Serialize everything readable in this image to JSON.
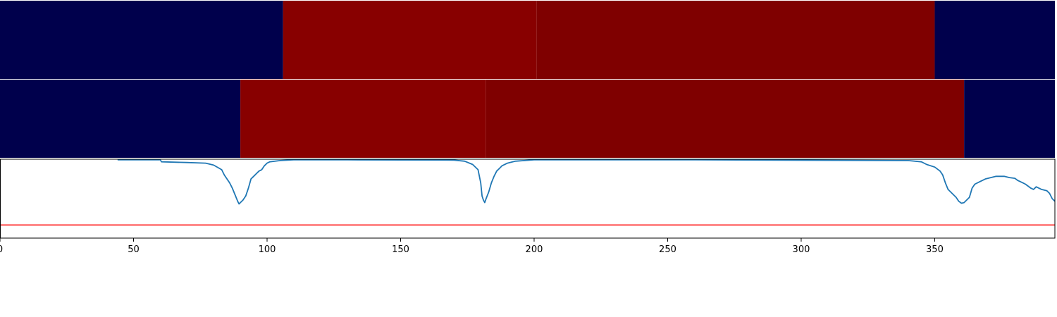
{
  "chart_data": {
    "type": "heatmap",
    "x_range": [
      0,
      395
    ],
    "x_ticks": [
      0,
      50,
      100,
      150,
      200,
      250,
      300,
      350
    ],
    "x_tick_labels": [
      "0",
      "50",
      "100",
      "150",
      "200",
      "250",
      "300",
      "350"
    ],
    "segment_rows": [
      {
        "segments": [
          {
            "start": 0,
            "end": 106,
            "color": "#00004c"
          },
          {
            "start": 106,
            "end": 201,
            "color": "#880000"
          },
          {
            "start": 201,
            "end": 350,
            "color": "#7f0000"
          },
          {
            "start": 350,
            "end": 395,
            "color": "#00004c"
          }
        ]
      },
      {
        "segments": [
          {
            "start": 0,
            "end": 90,
            "color": "#00004c"
          },
          {
            "start": 90,
            "end": 182,
            "color": "#880000"
          },
          {
            "start": 182,
            "end": 361,
            "color": "#7f0000"
          },
          {
            "start": 361,
            "end": 395,
            "color": "#00004c"
          }
        ]
      }
    ],
    "line_series": {
      "color": "#1f77b4",
      "points": [
        [
          44,
          0.995
        ],
        [
          60,
          0.995
        ],
        [
          60.5,
          0.98
        ],
        [
          70,
          0.975
        ],
        [
          77,
          0.97
        ],
        [
          78,
          0.965
        ],
        [
          80,
          0.955
        ],
        [
          83,
          0.92
        ],
        [
          84,
          0.88
        ],
        [
          86,
          0.82
        ],
        [
          87,
          0.78
        ],
        [
          88,
          0.73
        ],
        [
          89,
          0.68
        ],
        [
          89.5,
          0.66
        ],
        [
          90,
          0.67
        ],
        [
          91,
          0.69
        ],
        [
          92,
          0.72
        ],
        [
          93,
          0.78
        ],
        [
          94,
          0.85
        ],
        [
          95,
          0.87
        ],
        [
          96,
          0.89
        ],
        [
          97,
          0.91
        ],
        [
          98,
          0.92
        ],
        [
          99,
          0.95
        ],
        [
          100,
          0.97
        ],
        [
          101,
          0.98
        ],
        [
          105,
          0.99
        ],
        [
          110,
          0.995
        ],
        [
          130,
          0.995
        ],
        [
          170,
          0.993
        ],
        [
          174,
          0.985
        ],
        [
          177,
          0.96
        ],
        [
          179,
          0.92
        ],
        [
          180,
          0.82
        ],
        [
          180.5,
          0.72
        ],
        [
          181,
          0.69
        ],
        [
          181.5,
          0.67
        ],
        [
          182,
          0.7
        ],
        [
          183,
          0.75
        ],
        [
          184,
          0.82
        ],
        [
          185,
          0.87
        ],
        [
          186,
          0.91
        ],
        [
          187,
          0.93
        ],
        [
          188,
          0.95
        ],
        [
          190,
          0.97
        ],
        [
          193,
          0.985
        ],
        [
          200,
          0.995
        ],
        [
          260,
          0.995
        ],
        [
          340,
          0.99
        ],
        [
          345,
          0.98
        ],
        [
          347,
          0.96
        ],
        [
          350,
          0.94
        ],
        [
          352,
          0.91
        ],
        [
          353,
          0.88
        ],
        [
          354,
          0.82
        ],
        [
          355,
          0.77
        ],
        [
          357,
          0.73
        ],
        [
          358,
          0.71
        ],
        [
          359,
          0.68
        ],
        [
          360,
          0.665
        ],
        [
          361,
          0.67
        ],
        [
          362,
          0.69
        ],
        [
          363,
          0.71
        ],
        [
          364,
          0.78
        ],
        [
          365,
          0.81
        ],
        [
          367,
          0.83
        ],
        [
          369,
          0.85
        ],
        [
          371,
          0.86
        ],
        [
          373,
          0.87
        ],
        [
          376,
          0.87
        ],
        [
          378,
          0.86
        ],
        [
          380,
          0.855
        ],
        [
          381,
          0.84
        ],
        [
          383,
          0.82
        ],
        [
          384,
          0.81
        ],
        [
          386,
          0.78
        ],
        [
          387,
          0.77
        ],
        [
          388,
          0.79
        ],
        [
          389,
          0.78
        ],
        [
          390,
          0.77
        ],
        [
          392,
          0.76
        ],
        [
          393,
          0.74
        ],
        [
          394,
          0.7
        ],
        [
          395,
          0.68
        ]
      ]
    },
    "line_y_range": [
      0.4,
      1.0
    ],
    "threshold": {
      "value": 0.5,
      "color": "#ff0000"
    }
  }
}
